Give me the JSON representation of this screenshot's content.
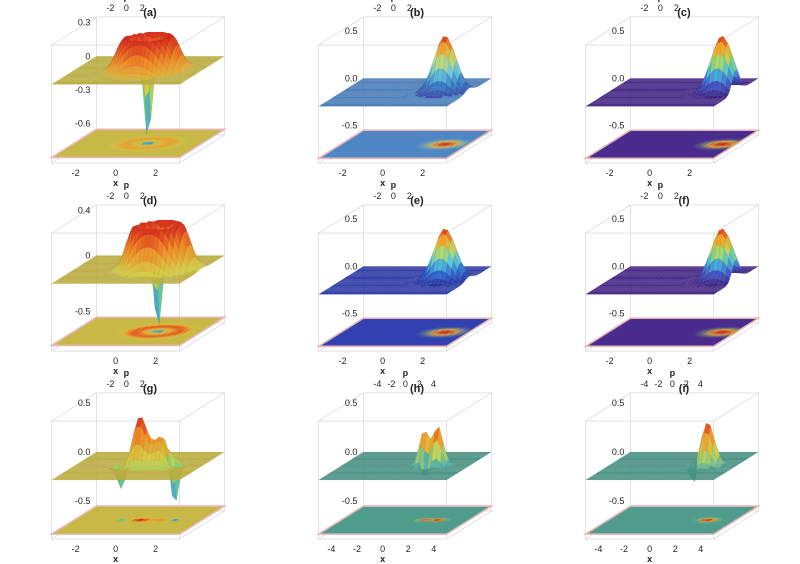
{
  "chart_data": [
    {
      "panel": "(a)",
      "type": "surface",
      "title": "(a)",
      "xlabel": "x",
      "plabel": "p",
      "xticks": [
        "-2",
        "0",
        "2"
      ],
      "pticks": [
        "-2",
        "0",
        "2"
      ],
      "zticks": [
        "0.3",
        "0",
        "-0.3",
        "-0.6"
      ],
      "zlim": [
        -0.7,
        0.35
      ],
      "colormap": "rainbow",
      "surface": {
        "kind": "ring-with-central-dip",
        "peak": 0.3,
        "dip": -0.6,
        "center": [
          0.5,
          0.0
        ]
      }
    },
    {
      "panel": "(b)",
      "type": "surface",
      "title": "(b)",
      "xlabel": "x",
      "plabel": "p",
      "xticks": [
        "-2",
        "0",
        "2"
      ],
      "pticks": [
        "-2",
        "0",
        "2"
      ],
      "zticks": [
        "0.5",
        "0.0",
        "-0.5"
      ],
      "zlim": [
        -0.6,
        0.65
      ],
      "colormap": "bluered",
      "surface": {
        "kind": "gaussian",
        "peak": 0.6,
        "center": [
          2.0,
          0.0
        ]
      }
    },
    {
      "panel": "(c)",
      "type": "surface",
      "title": "(c)",
      "xlabel": "x",
      "plabel": "p",
      "xticks": [
        "-2",
        "0",
        "2"
      ],
      "pticks": [
        "-2",
        "0",
        "2"
      ],
      "zticks": [
        "0.5",
        "0.0",
        "-0.5"
      ],
      "zlim": [
        -0.6,
        0.65
      ],
      "colormap": "purplered",
      "surface": {
        "kind": "gaussian",
        "peak": 0.6,
        "center": [
          2.5,
          0.0
        ]
      }
    },
    {
      "panel": "(d)",
      "type": "surface",
      "title": "(d)",
      "xlabel": "x",
      "plabel": "p",
      "xticks": [
        "0",
        "2"
      ],
      "pticks": [
        "-2",
        "0",
        "2"
      ],
      "zticks": [
        "0.4",
        "0",
        "-0.5"
      ],
      "zlim": [
        -0.6,
        0.45
      ],
      "colormap": "rainbow",
      "surface": {
        "kind": "ring-with-central-dip",
        "peak": 0.4,
        "dip": -0.5,
        "center": [
          1.0,
          0.0
        ]
      }
    },
    {
      "panel": "(e)",
      "type": "surface",
      "title": "(e)",
      "xlabel": "x",
      "plabel": "p",
      "xticks": [
        "-2",
        "0",
        "2"
      ],
      "pticks": [
        "-2",
        "0",
        "2"
      ],
      "zticks": [
        "0.5",
        "0.0",
        "-0.5"
      ],
      "zlim": [
        -0.6,
        0.65
      ],
      "colormap": "navyred",
      "surface": {
        "kind": "gaussian",
        "peak": 0.55,
        "center": [
          2.0,
          0.0
        ]
      }
    },
    {
      "panel": "(f)",
      "type": "surface",
      "title": "(f)",
      "xlabel": "x",
      "plabel": "p",
      "xticks": [
        "-2",
        "0",
        "2"
      ],
      "pticks": [
        "-2",
        "0",
        "2"
      ],
      "zticks": [
        "0.5",
        "0.0",
        "-0.5"
      ],
      "zlim": [
        -0.6,
        0.65
      ],
      "colormap": "purplered",
      "surface": {
        "kind": "gaussian",
        "peak": 0.55,
        "center": [
          2.5,
          0.0
        ]
      }
    },
    {
      "panel": "(g)",
      "type": "surface",
      "title": "(g)",
      "xlabel": "x",
      "plabel": "p",
      "xticks": [
        "-2",
        "0",
        "2"
      ],
      "pticks": [
        "-2",
        "0",
        "2"
      ],
      "zticks": [
        "0.5",
        "0.0",
        "-0.5"
      ],
      "zlim": [
        -0.6,
        0.6
      ],
      "colormap": "rainbow",
      "surface": {
        "kind": "interference",
        "peak": 0.5,
        "dip": -0.5,
        "center": [
          0.8,
          0.0
        ]
      }
    },
    {
      "panel": "(h)",
      "type": "surface",
      "title": "(h)",
      "xlabel": "x",
      "plabel": "p",
      "xticks": [
        "-4",
        "-2",
        "0",
        "2",
        "4"
      ],
      "pticks": [
        "-4",
        "-2",
        "0",
        "2",
        "4"
      ],
      "zticks": [
        "0.5",
        "0.0",
        "-0.5"
      ],
      "zlim": [
        -0.6,
        0.6
      ],
      "colormap": "tealred",
      "surface": {
        "kind": "double-peak",
        "peak": 0.4,
        "dip": -0.2,
        "center": [
          2.0,
          0.0
        ]
      }
    },
    {
      "panel": "(i)",
      "type": "surface",
      "title": "(i)",
      "xlabel": "x",
      "plabel": "p",
      "xticks": [
        "-4",
        "-2",
        "0",
        "2",
        "4"
      ],
      "pticks": [
        "-4",
        "-2",
        "0",
        "2",
        "4"
      ],
      "zticks": [
        "0.5",
        "0.0",
        "-0.5"
      ],
      "zlim": [
        -0.6,
        0.6
      ],
      "colormap": "tealred",
      "surface": {
        "kind": "peak-with-dip",
        "peak": 0.45,
        "dip": -0.3,
        "center": [
          2.5,
          0.0
        ]
      }
    }
  ]
}
